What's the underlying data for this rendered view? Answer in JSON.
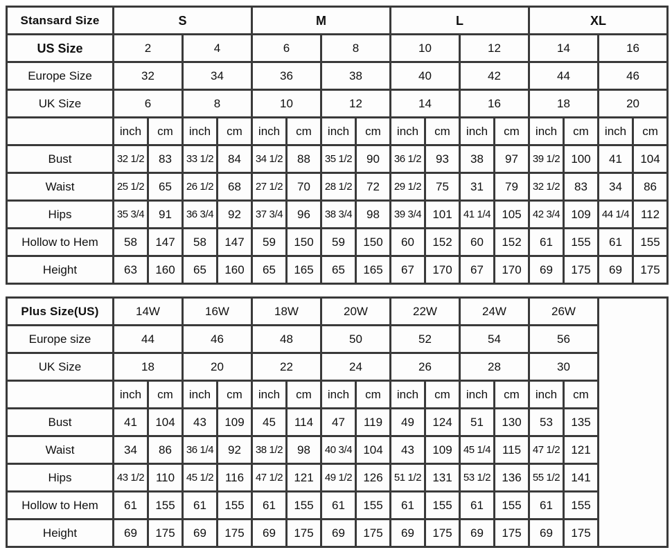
{
  "chart_data": [
    {
      "type": "table",
      "name": "standard-size",
      "corner_label": "Stansard Size",
      "group_header": [
        "S",
        "M",
        "L",
        "XL"
      ],
      "size_rows": [
        {
          "label": "US Size",
          "label_bold": true,
          "values": [
            "2",
            "4",
            "6",
            "8",
            "10",
            "12",
            "14",
            "16"
          ]
        },
        {
          "label": "Europe Size",
          "label_bold": false,
          "values": [
            "32",
            "34",
            "36",
            "38",
            "40",
            "42",
            "44",
            "46"
          ]
        },
        {
          "label": "UK Size",
          "label_bold": false,
          "values": [
            "6",
            "8",
            "10",
            "12",
            "14",
            "16",
            "18",
            "20"
          ]
        }
      ],
      "unit_labels": [
        "inch",
        "cm",
        "inch",
        "cm",
        "inch",
        "cm",
        "inch",
        "cm",
        "inch",
        "cm",
        "inch",
        "cm",
        "inch",
        "cm",
        "inch",
        "cm"
      ],
      "measurement_rows": [
        {
          "label": "Bust",
          "values": [
            "32 1/2",
            "83",
            "33 1/2",
            "84",
            "34 1/2",
            "88",
            "35 1/2",
            "90",
            "36 1/2",
            "93",
            "38",
            "97",
            "39 1/2",
            "100",
            "41",
            "104"
          ]
        },
        {
          "label": "Waist",
          "values": [
            "25 1/2",
            "65",
            "26 1/2",
            "68",
            "27 1/2",
            "70",
            "28 1/2",
            "72",
            "29 1/2",
            "75",
            "31",
            "79",
            "32 1/2",
            "83",
            "34",
            "86"
          ]
        },
        {
          "label": "Hips",
          "values": [
            "35 3/4",
            "91",
            "36 3/4",
            "92",
            "37 3/4",
            "96",
            "38 3/4",
            "98",
            "39 3/4",
            "101",
            "41 1/4",
            "105",
            "42 3/4",
            "109",
            "44 1/4",
            "112"
          ]
        },
        {
          "label": "Hollow to Hem",
          "values": [
            "58",
            "147",
            "58",
            "147",
            "59",
            "150",
            "59",
            "150",
            "60",
            "152",
            "60",
            "152",
            "61",
            "155",
            "61",
            "155"
          ]
        },
        {
          "label": "Height",
          "values": [
            "63",
            "160",
            "65",
            "160",
            "65",
            "165",
            "65",
            "165",
            "67",
            "170",
            "67",
            "170",
            "69",
            "175",
            "69",
            "175"
          ]
        }
      ]
    },
    {
      "type": "table",
      "name": "plus-size",
      "corner_label": "Plus Size(US)",
      "group_header": [
        "14W",
        "16W",
        "18W",
        "20W",
        "22W",
        "24W",
        "26W"
      ],
      "size_rows": [
        {
          "label": "Europe size",
          "label_bold": false,
          "values": [
            "44",
            "46",
            "48",
            "50",
            "52",
            "54",
            "56"
          ]
        },
        {
          "label": "UK Size",
          "label_bold": false,
          "values": [
            "18",
            "20",
            "22",
            "24",
            "26",
            "28",
            "30"
          ]
        }
      ],
      "unit_labels": [
        "inch",
        "cm",
        "inch",
        "cm",
        "inch",
        "cm",
        "inch",
        "cm",
        "inch",
        "cm",
        "inch",
        "cm",
        "inch",
        "cm"
      ],
      "measurement_rows": [
        {
          "label": "Bust",
          "values": [
            "41",
            "104",
            "43",
            "109",
            "45",
            "114",
            "47",
            "119",
            "49",
            "124",
            "51",
            "130",
            "53",
            "135"
          ]
        },
        {
          "label": "Waist",
          "values": [
            "34",
            "86",
            "36 1/4",
            "92",
            "38 1/2",
            "98",
            "40 3/4",
            "104",
            "43",
            "109",
            "45 1/4",
            "115",
            "47 1/2",
            "121"
          ]
        },
        {
          "label": "Hips",
          "values": [
            "43 1/2",
            "110",
            "45 1/2",
            "116",
            "47 1/2",
            "121",
            "49 1/2",
            "126",
            "51 1/2",
            "131",
            "53 1/2",
            "136",
            "55 1/2",
            "141"
          ]
        },
        {
          "label": "Hollow to Hem",
          "values": [
            "61",
            "155",
            "61",
            "155",
            "61",
            "155",
            "61",
            "155",
            "61",
            "155",
            "61",
            "155",
            "61",
            "155"
          ]
        },
        {
          "label": "Height",
          "values": [
            "69",
            "175",
            "69",
            "175",
            "69",
            "175",
            "69",
            "175",
            "69",
            "175",
            "69",
            "175",
            "69",
            "175"
          ]
        }
      ],
      "trailing_empty_column": true
    }
  ],
  "colors": {
    "border": "#3a3a3a",
    "cell_background": "#fdfdfd",
    "text": "#0f0f0f"
  }
}
